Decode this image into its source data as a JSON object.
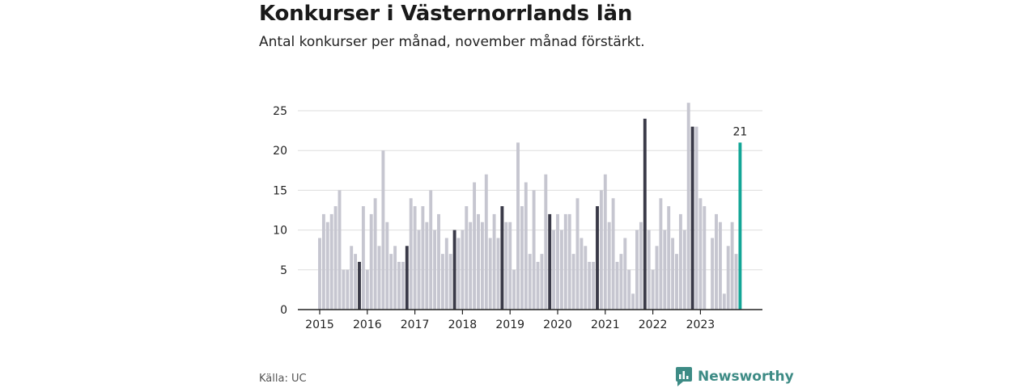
{
  "header": {
    "title": "Konkurser i Västernorrlands län",
    "subtitle": "Antal konkurser per månad, november månad förstärkt."
  },
  "footer": {
    "source": "Källa: UC",
    "brand": "Newsworthy"
  },
  "colors": {
    "bar": "#c6c6d0",
    "november": "#3a3a48",
    "latest": "#12a596",
    "grid": "#dddddd",
    "axis": "#222222"
  },
  "chart_data": {
    "type": "bar",
    "title": "Konkurser i Västernorrlands län",
    "subtitle": "Antal konkurser per månad, november månad förstärkt.",
    "xlabel": "",
    "ylabel": "",
    "ylim": [
      0,
      27
    ],
    "yticks": [
      0,
      5,
      10,
      15,
      20,
      25
    ],
    "xtick_labels": [
      "2015",
      "2016",
      "2017",
      "2018",
      "2019",
      "2020",
      "2021",
      "2022",
      "2023"
    ],
    "grid": true,
    "start": "2015-01",
    "highlight_month": 11,
    "latest_label": "21",
    "values": [
      9,
      12,
      11,
      12,
      13,
      15,
      5,
      5,
      8,
      7,
      6,
      13,
      5,
      12,
      14,
      8,
      20,
      11,
      7,
      8,
      6,
      6,
      8,
      14,
      13,
      10,
      13,
      11,
      15,
      10,
      12,
      7,
      9,
      7,
      10,
      9,
      10,
      13,
      11,
      16,
      12,
      11,
      17,
      9,
      12,
      9,
      13,
      11,
      11,
      5,
      21,
      13,
      16,
      7,
      15,
      6,
      7,
      17,
      12,
      10,
      12,
      10,
      12,
      12,
      7,
      14,
      9,
      8,
      6,
      6,
      13,
      15,
      17,
      11,
      14,
      6,
      7,
      9,
      5,
      2,
      10,
      11,
      24,
      10,
      5,
      8,
      14,
      10,
      13,
      9,
      7,
      12,
      10,
      26,
      23,
      23,
      14,
      13,
      0,
      9,
      12,
      11,
      2,
      8,
      11,
      7,
      21
    ]
  }
}
